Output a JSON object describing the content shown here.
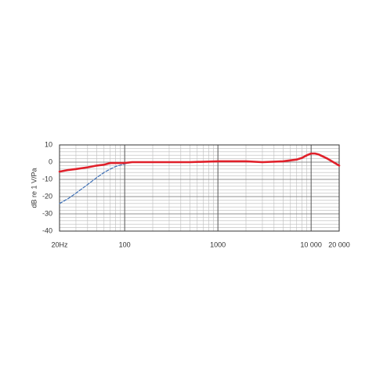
{
  "chart_data": {
    "type": "line",
    "y_label": "dB re 1 V/Pa",
    "xscale": "log",
    "grid": true,
    "minor_grid": true,
    "x": [
      20,
      25,
      30,
      40,
      50,
      60,
      70,
      80,
      100,
      120,
      200,
      300,
      500,
      1000,
      2000,
      3000,
      5000,
      7000,
      8000,
      9000,
      10000,
      11000,
      12000,
      15000,
      20000
    ],
    "series": [
      {
        "color": "#e0202a",
        "values": [
          -5.5,
          -4.5,
          -4,
          -3,
          -2,
          -1.5,
          -0.5,
          -0.5,
          -0.5,
          0,
          0,
          0,
          0,
          0.5,
          0.5,
          0,
          0.5,
          1.5,
          2.5,
          4,
          5,
          5,
          4.5,
          2,
          -2
        ]
      },
      {
        "color": "#3d6fb5",
        "dashed": true,
        "values": [
          -24,
          -21,
          -18,
          -13,
          -9,
          -6,
          -4,
          -2.5,
          -1,
          0,
          null,
          null,
          null,
          null,
          null,
          null,
          null,
          null,
          null,
          null,
          null,
          null,
          null,
          null,
          null
        ]
      }
    ],
    "xlim": [
      20,
      20000
    ],
    "ylim": [
      -40,
      10
    ],
    "xticks": [
      {
        "value": 20,
        "label": "20Hz"
      },
      100,
      1000,
      {
        "value": 10000,
        "label": "10 000"
      },
      {
        "value": 20000,
        "label": "20 000"
      }
    ],
    "yticks": [
      10,
      0,
      -10,
      -20,
      -30,
      -40
    ]
  }
}
